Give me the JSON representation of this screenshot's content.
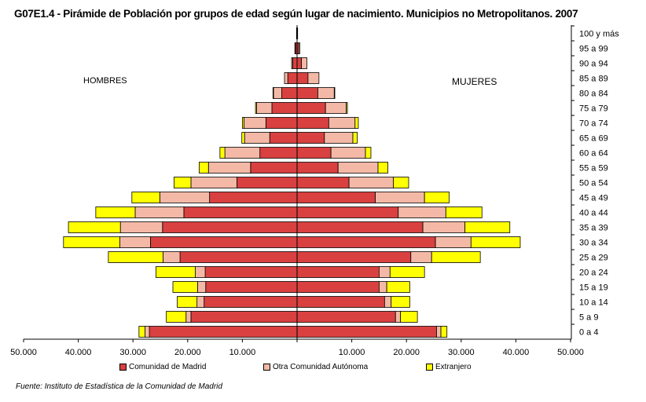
{
  "title": "G07E1.4 - Pirámide de Población por grupos de edad según lugar de nacimiento. Municipios no Metropolitanos. 2007",
  "labels": {
    "men": "HOMBRES",
    "women": "MUJERES"
  },
  "source": "Fuente: Instituto de Estadística de la Comunidad de Madrid",
  "colors": {
    "madrid": "#D94040",
    "other": "#F4B9A6",
    "foreign": "#FFFF00"
  },
  "chart_data": {
    "type": "bar",
    "orientation": "horizontal",
    "categories": [
      "0 a 4",
      "5 a 9",
      "10 a 14",
      "15 a 19",
      "20 a 24",
      "25 a 29",
      "30 a 34",
      "35 a 39",
      "40 a 44",
      "45 a 49",
      "50 a 54",
      "55 a 59",
      "60 a 64",
      "65 a 69",
      "70 a 74",
      "75 a 79",
      "80 a 84",
      "85 a 89",
      "90 a 94",
      "95 a 99",
      "100 y más"
    ],
    "x_ticks": [
      "50.000",
      "40.000",
      "30.000",
      "20.000",
      "10.000",
      "",
      "10.000",
      "20.000",
      "30.000",
      "40.000",
      "50.000"
    ],
    "xlim": [
      -50000,
      50000
    ],
    "legend_position": "bottom",
    "grid": false,
    "series": [
      {
        "name": "Comunidad de Madrid",
        "men": [
          27000,
          19400,
          17000,
          16700,
          16800,
          21400,
          26800,
          24600,
          20700,
          16000,
          11000,
          8500,
          6800,
          5000,
          5700,
          4600,
          2800,
          1700,
          800,
          300,
          100
        ],
        "women": [
          25500,
          18000,
          16000,
          15000,
          15000,
          20800,
          25300,
          23000,
          18500,
          14300,
          9500,
          7500,
          6200,
          5000,
          5800,
          5200,
          3800,
          2000,
          800,
          300,
          100
        ]
      },
      {
        "name": "Otra Comunidad Autónoma",
        "men": [
          800,
          900,
          1300,
          1500,
          1800,
          3100,
          5600,
          7700,
          8900,
          9100,
          8400,
          7700,
          6400,
          4600,
          4000,
          2800,
          1500,
          600,
          200,
          100,
          0
        ],
        "women": [
          800,
          900,
          1200,
          1400,
          2000,
          3800,
          6500,
          7700,
          8700,
          9000,
          8100,
          7300,
          6300,
          5200,
          4800,
          3800,
          3000,
          2000,
          1000,
          200,
          0
        ]
      },
      {
        "name": "Extranjero",
        "men": [
          1100,
          3600,
          3600,
          4500,
          7200,
          10000,
          10300,
          9500,
          7200,
          5100,
          3100,
          1700,
          900,
          500,
          300,
          200,
          100,
          0,
          0,
          0,
          0
        ],
        "women": [
          1100,
          3100,
          3400,
          4200,
          6300,
          8900,
          9000,
          8200,
          6600,
          4500,
          2800,
          1800,
          1000,
          800,
          600,
          200,
          100,
          0,
          0,
          0,
          0
        ]
      }
    ]
  }
}
